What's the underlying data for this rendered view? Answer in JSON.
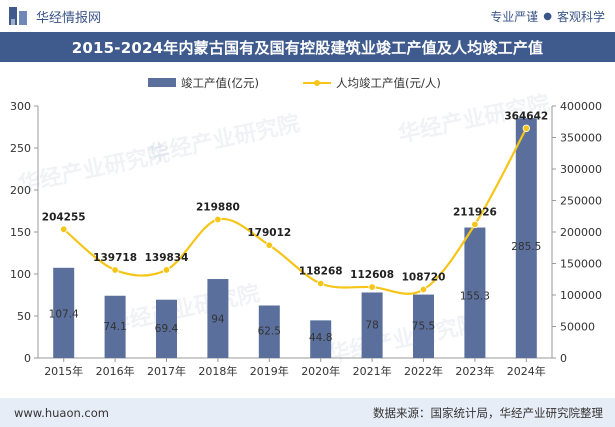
{
  "header": {
    "brand_name": "华经情报网",
    "tagline_left": "专业严谨",
    "tagline_right": "客观科学"
  },
  "title": "2015-2024年内蒙古国有及国有控股建筑业竣工产值及人均竣工产值",
  "footer": {
    "website": "www.huaon.com",
    "source": "数据来源：国家统计局，华经产业研究院整理"
  },
  "watermark": "华经产业研究院",
  "chart_data": {
    "type": "bar+line",
    "categories": [
      "2015年",
      "2016年",
      "2017年",
      "2018年",
      "2019年",
      "2020年",
      "2021年",
      "2022年",
      "2023年",
      "2024年"
    ],
    "series": [
      {
        "name": "竣工产值(亿元)",
        "type": "bar",
        "axis": "left",
        "values": [
          107.4,
          74.1,
          69.4,
          94,
          62.5,
          44.8,
          78,
          75.5,
          155.3,
          285.5
        ],
        "labels": [
          "107.4",
          "74.1",
          "69.4",
          "94",
          "62.5",
          "44.8",
          "78",
          "75.5",
          "155.3",
          "285.5"
        ],
        "color": "#5a6f9c"
      },
      {
        "name": "人均竣工产值(元/人)",
        "type": "line",
        "axis": "right",
        "values": [
          204255,
          139718,
          139834,
          219880,
          179012,
          118268,
          112608,
          108720,
          211926,
          364642
        ],
        "labels": [
          "204255",
          "139718",
          "139834",
          "219880",
          "179012",
          "118268",
          "112608",
          "108720",
          "211926",
          "364642"
        ],
        "color": "#f5c518"
      }
    ],
    "left_axis": {
      "min": 0,
      "max": 300,
      "ticks": [
        "0",
        "50",
        "100",
        "150",
        "200",
        "250",
        "300"
      ]
    },
    "right_axis": {
      "min": 0,
      "max": 400000,
      "ticks": [
        "0",
        "50000",
        "100000",
        "150000",
        "200000",
        "250000",
        "300000",
        "350000",
        "400000"
      ]
    },
    "legend_position": "top",
    "grid": false
  }
}
